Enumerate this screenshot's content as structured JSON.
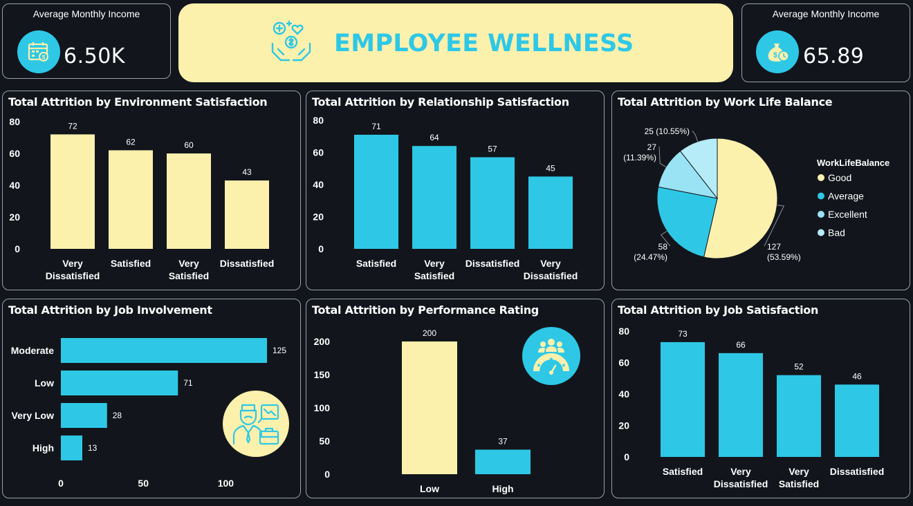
{
  "colors": {
    "yellow": "#fcf0ad",
    "cyan": "#2ec8e6",
    "light_cyan": "#99e3f4",
    "pale_cyan": "#b5ecf8",
    "background": "#12161c"
  },
  "kpi_left": {
    "label": "Average Monthly Income",
    "value": "6.50K",
    "icon": "calendar-money-icon"
  },
  "kpi_right": {
    "label": "Average Monthly Income",
    "value": "65.89",
    "icon": "money-bag-clock-icon"
  },
  "banner": {
    "title": "EMPLOYEE WELLNESS",
    "icon": "wellness-hands-icon"
  },
  "chart_data": [
    {
      "id": "env",
      "type": "bar",
      "title": "Total Attrition by Environment Satisfaction",
      "categories": [
        "Very Dissatisfied",
        "Satisfied",
        "Very Satisfied",
        "Dissatisfied"
      ],
      "values": [
        72,
        62,
        60,
        43
      ],
      "yticks": [
        0,
        20,
        40,
        60,
        80
      ],
      "ylim": [
        0,
        80
      ],
      "color": "#fcf0ad"
    },
    {
      "id": "rel",
      "type": "bar",
      "title": "Total Attrition by Relationship Satisfaction",
      "categories": [
        "Satisfied",
        "Very Satisfied",
        "Dissatisfied",
        "Very Dissatisfied"
      ],
      "values": [
        71,
        64,
        57,
        45
      ],
      "yticks": [
        0,
        20,
        40,
        60,
        80
      ],
      "ylim": [
        0,
        80
      ],
      "color": "#2ec8e6"
    },
    {
      "id": "wlb",
      "type": "pie",
      "title": "Total Attrition by Work Life Balance",
      "legend_title": "WorkLifeBalance",
      "legend_position": "right",
      "slices": [
        {
          "label": "Good",
          "value": 127,
          "percent": "53.59%",
          "color": "#fcf0ad"
        },
        {
          "label": "Average",
          "value": 58,
          "percent": "24.47%",
          "color": "#2ec8e6"
        },
        {
          "label": "Excellent",
          "value": 27,
          "percent": "11.39%",
          "color": "#99e3f4"
        },
        {
          "label": "Bad",
          "value": 25,
          "percent": "10.55%",
          "color": "#b5ecf8"
        }
      ]
    },
    {
      "id": "job_inv",
      "type": "bar",
      "orientation": "horizontal",
      "title": "Total Attrition by Job Involvement",
      "categories": [
        "Moderate",
        "Low",
        "Very Low",
        "High"
      ],
      "values": [
        125,
        71,
        28,
        13
      ],
      "xticks": [
        0,
        50,
        100
      ],
      "xlim": [
        0,
        125
      ],
      "color": "#2ec8e6",
      "icon": "worried-employee-icon"
    },
    {
      "id": "perf",
      "type": "bar",
      "title": "Total Attrition by Performance Rating",
      "categories": [
        "Low",
        "High"
      ],
      "values": [
        200,
        37
      ],
      "yticks": [
        0,
        50,
        100,
        150,
        200
      ],
      "ylim": [
        0,
        200
      ],
      "colors": [
        "#fcf0ad",
        "#2ec8e6"
      ],
      "icon": "team-rating-icon"
    },
    {
      "id": "job_sat",
      "type": "bar",
      "title": "Total Attrition by Job Satisfaction",
      "categories": [
        "Satisfied",
        "Very Dissatisfied",
        "Very Satisfied",
        "Dissatisfied"
      ],
      "values": [
        73,
        66,
        52,
        46
      ],
      "yticks": [
        0,
        20,
        40,
        60,
        80
      ],
      "ylim": [
        0,
        80
      ],
      "color": "#2ec8e6"
    }
  ]
}
